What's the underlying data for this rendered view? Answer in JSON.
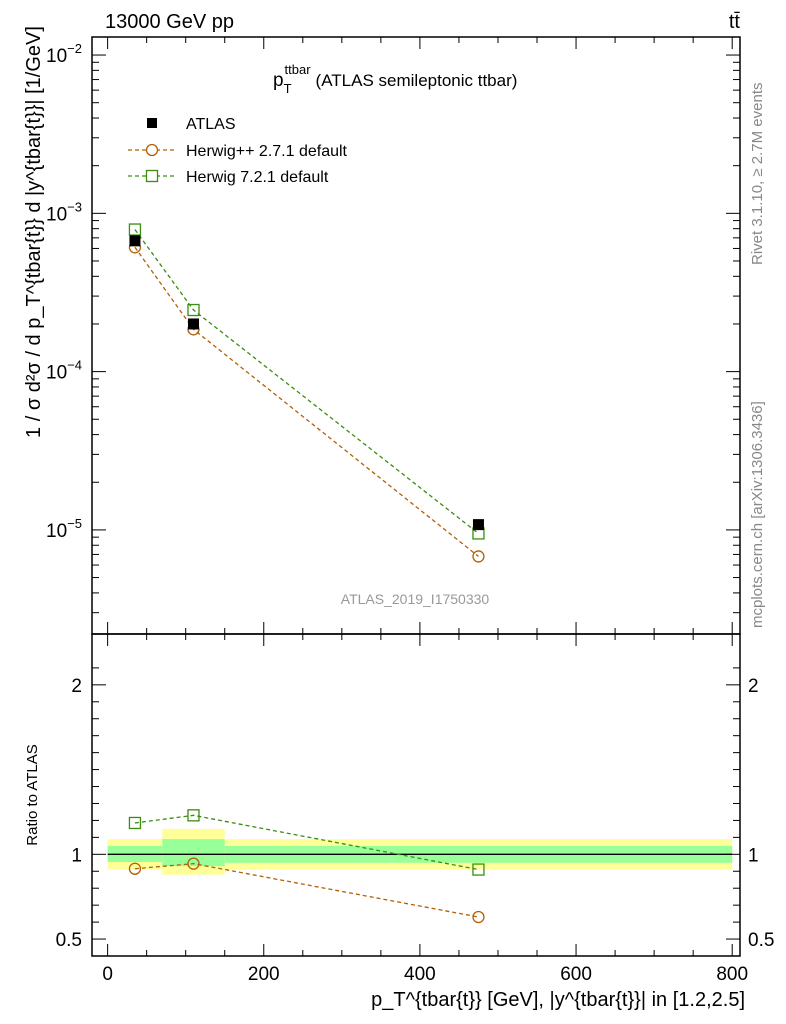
{
  "header": {
    "left": "13000 GeV pp",
    "right": "tt̄"
  },
  "side": {
    "rivet": "Rivet 3.1.10, ≥ 2.7M events",
    "mcplots": "mcplots.cern.ch [arXiv:1306.3436]"
  },
  "watermark": "ATLAS_2019_I1750330",
  "title": {
    "main": "p",
    "sup": "ttbar",
    "sub": "T",
    "rest": "(ATLAS semileptonic ttbar)"
  },
  "ylabel_top": "1 / σ d²σ / d p_T^{tbar{t}} d |y^{tbar{t}}| [1/GeV]",
  "ylabel_bottom": "Ratio to ATLAS",
  "xlabel": "p_T^{tbar{t}} [GeV], |y^{tbar{t}}| in [1.2,2.5]",
  "legend": [
    {
      "name": "ATLAS"
    },
    {
      "name": "Herwig++ 2.7.1 default"
    },
    {
      "name": "Herwig 7.2.1 default"
    }
  ],
  "colors": {
    "data": "#000000",
    "herwigpp": "#b45f06",
    "herwig7": "#3a8d10",
    "band_outer": "#ffff99",
    "band_inner": "#99ff99"
  },
  "chart_data": [
    {
      "type": "scatter",
      "panel": "main",
      "yscale": "log",
      "xlim": [
        -20,
        810
      ],
      "ylim": [
        2.2e-06,
        0.013
      ],
      "x_ticks": [
        0,
        200,
        400,
        600,
        800
      ],
      "y_ticks": [
        "10^-5",
        "10^-4",
        "10^-3",
        "10^-2"
      ],
      "legend_position": "top-left",
      "bins": [
        [
          0,
          70
        ],
        [
          70,
          150
        ],
        [
          150,
          800
        ]
      ],
      "series": [
        {
          "name": "ATLAS",
          "marker": "filled-square",
          "x": [
            35,
            110,
            475
          ],
          "y": [
            0.00067,
            0.0002,
            1.08e-05
          ]
        },
        {
          "name": "Herwig++ 2.7.1 default",
          "marker": "open-circle",
          "style": "dashed",
          "x": [
            35,
            110,
            475
          ],
          "y": [
            0.00061,
            0.000185,
            6.8e-06
          ]
        },
        {
          "name": "Herwig 7.2.1 default",
          "marker": "open-square",
          "style": "dashed",
          "x": [
            35,
            110,
            475
          ],
          "y": [
            0.00079,
            0.000245,
            9.5e-06
          ]
        }
      ]
    },
    {
      "type": "scatter",
      "panel": "ratio",
      "xlim": [
        -20,
        810
      ],
      "ylim": [
        0.4,
        2.3
      ],
      "x_ticks": [
        0,
        200,
        400,
        600,
        800
      ],
      "y_ticks": [
        0.5,
        1,
        2
      ],
      "x_tick_labels": [
        "0",
        "200",
        "400",
        "600",
        "800"
      ],
      "y_tick_labels": [
        "0.5",
        "1",
        "2"
      ],
      "bands": [
        {
          "bin": [
            0,
            70
          ],
          "inner": [
            0.955,
            1.05
          ],
          "outer": [
            0.91,
            1.09
          ]
        },
        {
          "bin": [
            70,
            150
          ],
          "inner": [
            0.93,
            1.09
          ],
          "outer": [
            0.88,
            1.15
          ]
        },
        {
          "bin": [
            150,
            800
          ],
          "inner": [
            0.95,
            1.05
          ],
          "outer": [
            0.91,
            1.09
          ]
        }
      ],
      "series": [
        {
          "name": "Herwig++ 2.7.1 default",
          "x": [
            35,
            110,
            475
          ],
          "y": [
            0.915,
            0.945,
            0.63
          ]
        },
        {
          "name": "Herwig 7.2.1 default",
          "x": [
            35,
            110,
            475
          ],
          "y": [
            1.185,
            1.23,
            0.91
          ]
        }
      ]
    }
  ]
}
